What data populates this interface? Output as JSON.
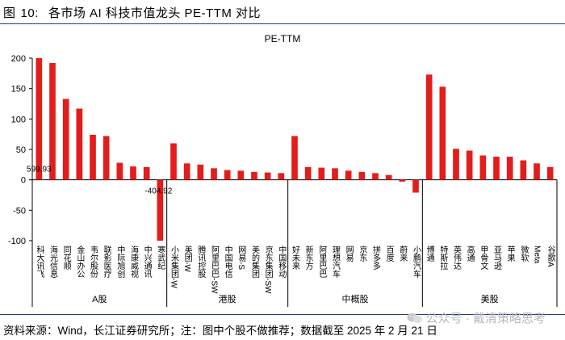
{
  "figure": {
    "label": "图",
    "number": "10:",
    "title": "各市场 AI 科技市值龙头 PE-TTM 对比"
  },
  "source_note": "资料来源：Wind，长江证券研究所；注：图中个股不做推荐；数据截至 2025 年 2 月 21 日",
  "watermark": "公众号 · 戴清策略思考",
  "colors": {
    "bar": "#e31c1c",
    "axis": "#000000",
    "rule": "#1f3a7a",
    "watermark": "#b8b8b8"
  },
  "chart_data": {
    "type": "bar",
    "title": "PE-TTM",
    "xlabel": "",
    "ylabel": "",
    "ylim": [
      -100,
      200
    ],
    "yticks": [
      -100,
      -50,
      0,
      50,
      100,
      150,
      200
    ],
    "grid": false,
    "legend": "none",
    "groups": [
      {
        "name": "A股",
        "items": [
          {
            "name": "科大讯飞",
            "value": 599.93
          },
          {
            "name": "海光信息",
            "value": 192
          },
          {
            "name": "同花顺",
            "value": 133
          },
          {
            "name": "金山办公",
            "value": 117
          },
          {
            "name": "韦尔股份",
            "value": 74
          },
          {
            "name": "联影医疗",
            "value": 72
          },
          {
            "name": "中际旭创",
            "value": 28
          },
          {
            "name": "海康威视",
            "value": 22
          },
          {
            "name": "中兴通讯",
            "value": 21
          },
          {
            "name": "寒武纪",
            "value": -404.92
          }
        ]
      },
      {
        "name": "港股",
        "items": [
          {
            "name": "小米集团-W",
            "value": 60
          },
          {
            "name": "美团-W",
            "value": 27
          },
          {
            "name": "腾讯控股",
            "value": 25
          },
          {
            "name": "阿里巴巴-SW",
            "value": 19
          },
          {
            "name": "中国电信",
            "value": 16
          },
          {
            "name": "网易-S",
            "value": 15
          },
          {
            "name": "美的集团",
            "value": 13
          },
          {
            "name": "京东集团-SW",
            "value": 12
          },
          {
            "name": "中国移动",
            "value": 11
          }
        ]
      },
      {
        "name": "中概股",
        "items": [
          {
            "name": "好未来",
            "value": 72
          },
          {
            "name": "新东方",
            "value": 21
          },
          {
            "name": "阿里巴巴",
            "value": 20
          },
          {
            "name": "理想汽车",
            "value": 19
          },
          {
            "name": "网易",
            "value": 15
          },
          {
            "name": "京东",
            "value": 13
          },
          {
            "name": "拼多多",
            "value": 11
          },
          {
            "name": "百度",
            "value": 8
          },
          {
            "name": "蔚来",
            "value": -3
          },
          {
            "name": "小鹏汽车",
            "value": -21
          }
        ]
      },
      {
        "name": "美股",
        "items": [
          {
            "name": "博通",
            "value": 173
          },
          {
            "name": "特斯拉",
            "value": 153
          },
          {
            "name": "英伟达",
            "value": 51
          },
          {
            "name": "高通",
            "value": 48
          },
          {
            "name": "甲骨文",
            "value": 40
          },
          {
            "name": "亚马逊",
            "value": 38
          },
          {
            "name": "苹果",
            "value": 38
          },
          {
            "name": "微软",
            "value": 32
          },
          {
            "name": "Meta",
            "value": 27
          },
          {
            "name": "谷歌A",
            "value": 21
          }
        ]
      }
    ],
    "data_labels": [
      {
        "category": "科大讯飞",
        "text": "599.93"
      },
      {
        "category": "寒武纪",
        "text": "-404.92"
      }
    ]
  }
}
